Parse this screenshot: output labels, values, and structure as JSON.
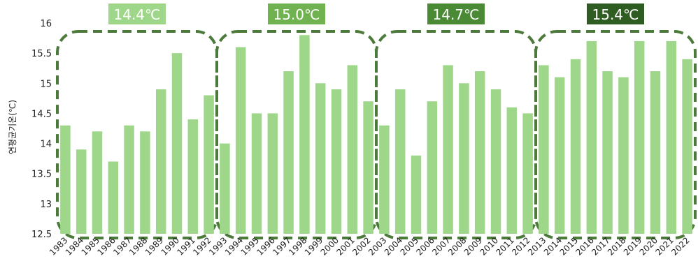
{
  "chart_data": {
    "type": "bar",
    "ylabel": "연평균기온(℃)",
    "ylim": [
      12.5,
      16
    ],
    "yticks": [
      12.5,
      13,
      13.5,
      14,
      14.5,
      15,
      15.5,
      16
    ],
    "categories": [
      "1983",
      "1984",
      "1985",
      "1986",
      "1987",
      "1988",
      "1989",
      "1990",
      "1991",
      "1992",
      "1993",
      "1994",
      "1995",
      "1996",
      "1997",
      "1998",
      "1999",
      "2000",
      "2001",
      "2002",
      "2003",
      "2004",
      "2005",
      "2006",
      "2007",
      "2008",
      "2009",
      "2010",
      "2011",
      "2012",
      "2013",
      "2014",
      "2015",
      "2016",
      "2017",
      "2018",
      "2019",
      "2020",
      "2021",
      "2022"
    ],
    "values": [
      14.3,
      13.9,
      14.2,
      13.7,
      14.3,
      14.2,
      14.9,
      15.5,
      14.4,
      14.8,
      14.0,
      15.6,
      14.5,
      14.5,
      15.2,
      15.8,
      15.0,
      14.9,
      15.3,
      14.7,
      14.3,
      14.9,
      13.8,
      14.7,
      15.3,
      15.0,
      15.2,
      14.9,
      14.6,
      14.5,
      15.3,
      15.1,
      15.4,
      15.7,
      15.2,
      15.1,
      15.7,
      15.2,
      15.7,
      15.4
    ],
    "bar_color": "#9fd78a",
    "groups": [
      {
        "label": "14.4℃",
        "start": 0,
        "end": 9,
        "badge_color": "#9fd78a"
      },
      {
        "label": "15.0℃",
        "start": 10,
        "end": 19,
        "badge_color": "#6fb24f"
      },
      {
        "label": "14.7℃",
        "start": 20,
        "end": 29,
        "badge_color": "#4a8a35"
      },
      {
        "label": "15.4℃",
        "start": 30,
        "end": 39,
        "badge_color": "#2f5c22"
      }
    ],
    "group_box_color": "#4c7a3a"
  }
}
